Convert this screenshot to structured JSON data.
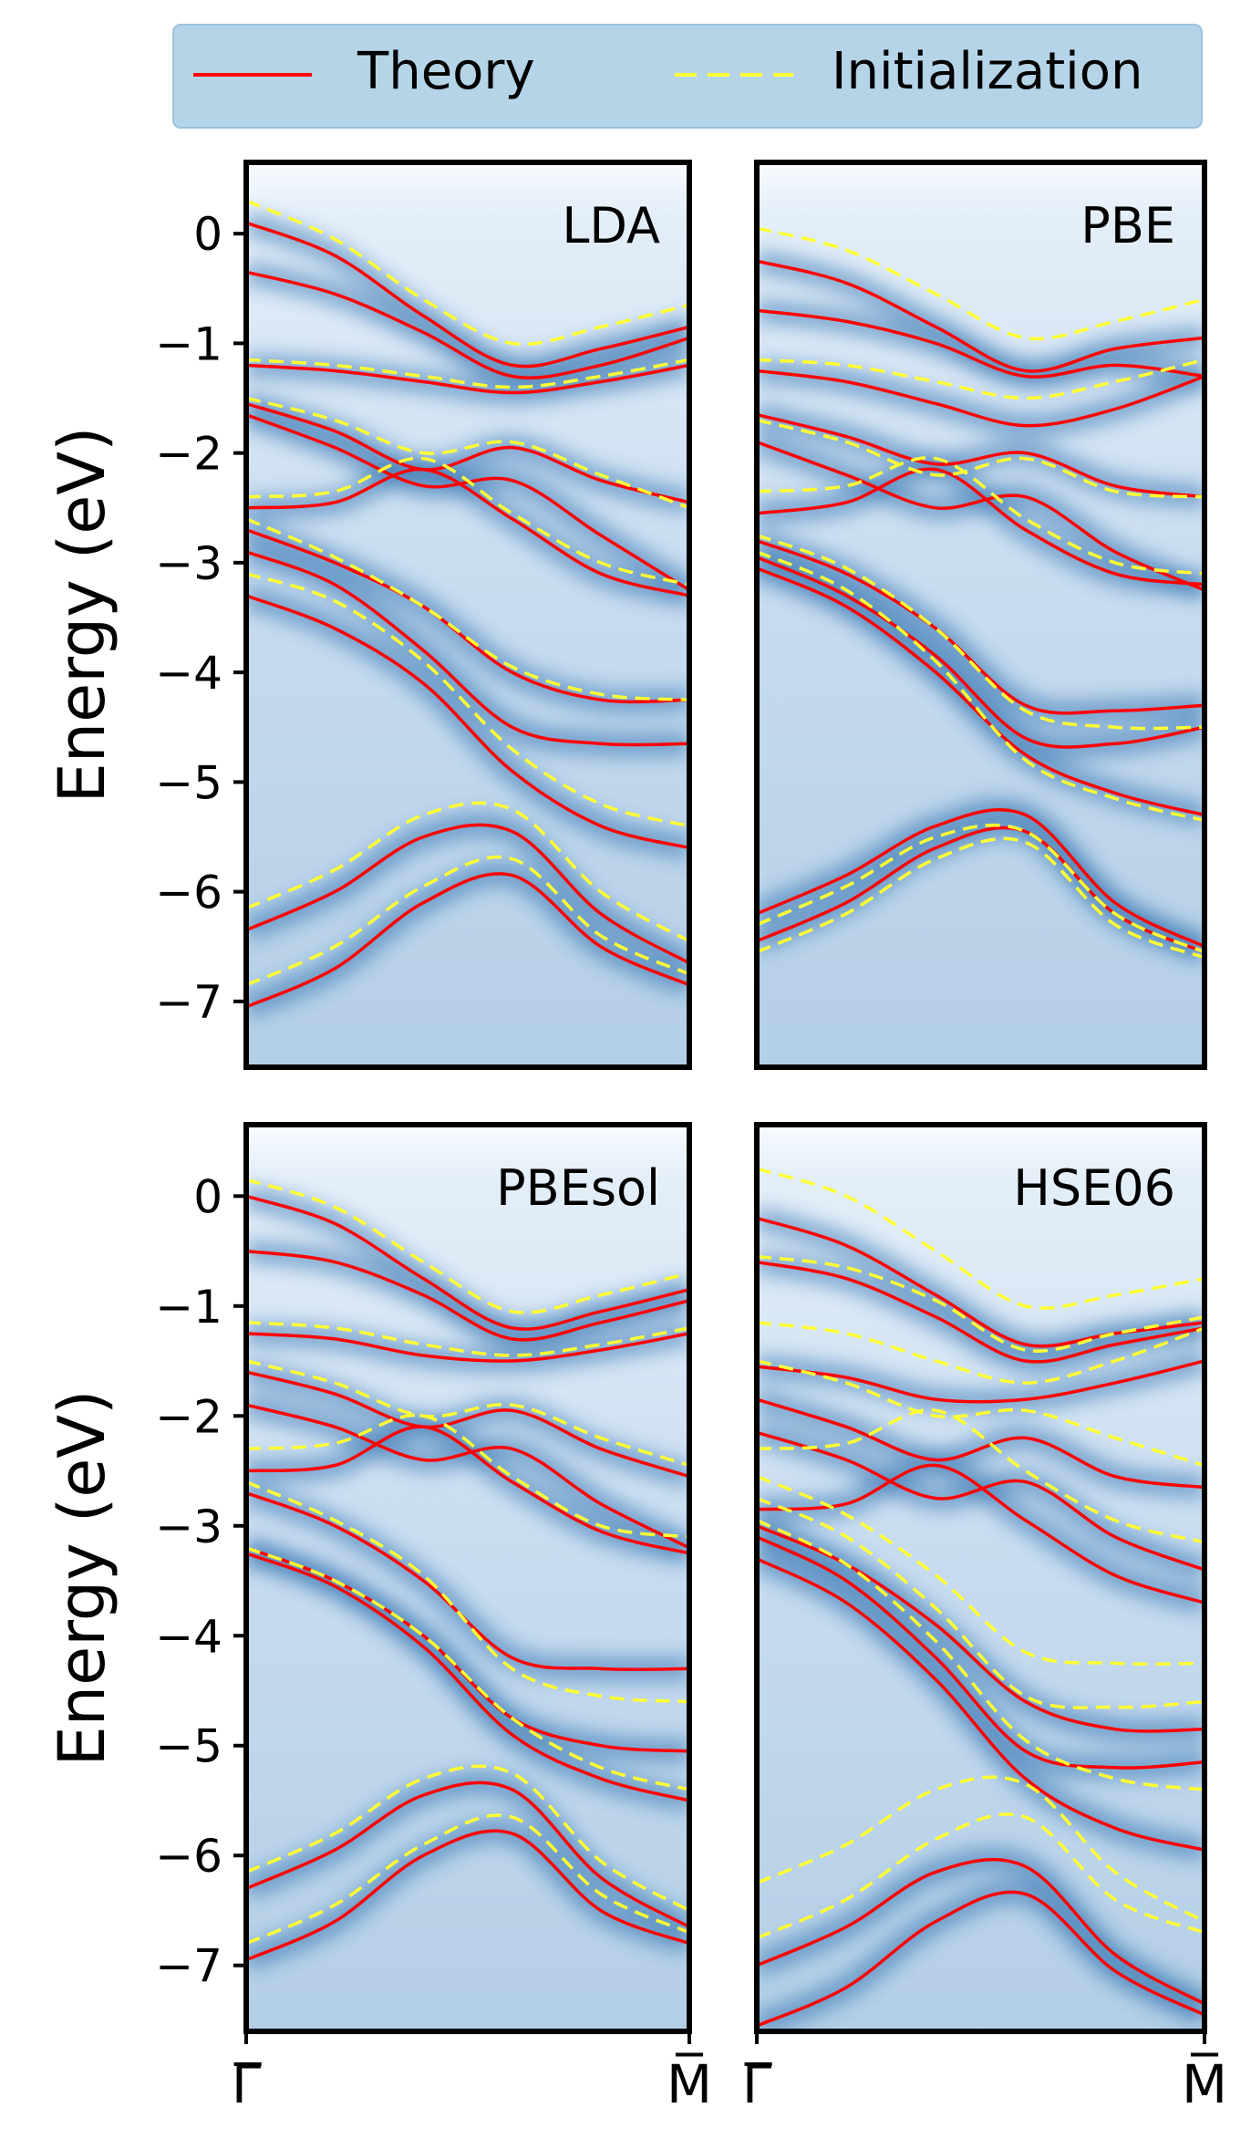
{
  "legend": {
    "position": "top",
    "entries": [
      {
        "label": "Theory",
        "color": "#ff0000",
        "style": "solid"
      },
      {
        "label": "Initialization",
        "color": "#ffff33",
        "style": "dashed"
      }
    ],
    "background": "#b6d4e8"
  },
  "colors": {
    "theory": "#ff0000",
    "init": "#ffff33",
    "intensity_low": "#f7fbff",
    "intensity_high": "#08306b"
  },
  "chart_data": [
    {
      "type": "line",
      "panel_label": "LDA",
      "ylabel": "Energy (eV)",
      "ylim": [
        -7.6,
        0.65
      ],
      "yticks": [
        0,
        -1,
        -2,
        -3,
        -4,
        -5,
        -6,
        -7
      ],
      "ytick_labels": [
        "0",
        "−1",
        "−2",
        "−3",
        "−4",
        "−5",
        "−6",
        "−7"
      ],
      "xlabels": [],
      "series": [
        {
          "kind": "theory",
          "y": [
            0.1,
            -0.2,
            -0.75,
            -1.2,
            -1.05,
            -0.85
          ]
        },
        {
          "kind": "theory",
          "y": [
            -0.35,
            -0.55,
            -0.9,
            -1.3,
            -1.2,
            -0.95
          ]
        },
        {
          "kind": "theory",
          "y": [
            -1.2,
            -1.25,
            -1.35,
            -1.45,
            -1.35,
            -1.2
          ]
        },
        {
          "kind": "theory",
          "y": [
            -1.55,
            -1.8,
            -2.15,
            -1.95,
            -2.25,
            -2.45
          ]
        },
        {
          "kind": "theory",
          "y": [
            -1.65,
            -1.95,
            -2.3,
            -2.25,
            -2.75,
            -3.25
          ]
        },
        {
          "kind": "theory",
          "y": [
            -2.5,
            -2.45,
            -2.15,
            -2.6,
            -3.1,
            -3.3
          ]
        },
        {
          "kind": "theory",
          "y": [
            -2.7,
            -3.0,
            -3.4,
            -4.0,
            -4.25,
            -4.25
          ]
        },
        {
          "kind": "theory",
          "y": [
            -2.9,
            -3.2,
            -3.8,
            -4.5,
            -4.65,
            -4.65
          ]
        },
        {
          "kind": "theory",
          "y": [
            -3.3,
            -3.6,
            -4.1,
            -4.9,
            -5.4,
            -5.6
          ]
        },
        {
          "kind": "theory",
          "y": [
            -6.35,
            -6.0,
            -5.5,
            -5.45,
            -6.2,
            -6.65
          ]
        },
        {
          "kind": "theory",
          "y": [
            -7.05,
            -6.7,
            -6.1,
            -5.85,
            -6.5,
            -6.85
          ]
        },
        {
          "kind": "init",
          "y": [
            0.3,
            -0.05,
            -0.6,
            -1.0,
            -0.85,
            -0.65
          ]
        },
        {
          "kind": "init",
          "y": [
            -1.15,
            -1.2,
            -1.3,
            -1.4,
            -1.3,
            -1.15
          ]
        },
        {
          "kind": "init",
          "y": [
            -1.5,
            -1.7,
            -2.0,
            -1.9,
            -2.2,
            -2.5
          ]
        },
        {
          "kind": "init",
          "y": [
            -2.4,
            -2.35,
            -2.05,
            -2.55,
            -3.0,
            -3.2
          ]
        },
        {
          "kind": "init",
          "y": [
            -2.6,
            -2.95,
            -3.4,
            -3.95,
            -4.2,
            -4.25
          ]
        },
        {
          "kind": "init",
          "y": [
            -3.1,
            -3.35,
            -3.9,
            -4.7,
            -5.2,
            -5.4
          ]
        },
        {
          "kind": "init",
          "y": [
            -6.15,
            -5.8,
            -5.3,
            -5.25,
            -6.0,
            -6.45
          ]
        },
        {
          "kind": "init",
          "y": [
            -6.85,
            -6.5,
            -5.95,
            -5.7,
            -6.4,
            -6.75
          ]
        }
      ]
    },
    {
      "type": "line",
      "panel_label": "PBE",
      "ylabel": "",
      "ylim": [
        -7.6,
        0.65
      ],
      "yticks": [],
      "ytick_labels": [],
      "xlabels": [],
      "series": [
        {
          "kind": "theory",
          "y": [
            -0.25,
            -0.45,
            -0.85,
            -1.25,
            -1.05,
            -0.95
          ]
        },
        {
          "kind": "theory",
          "y": [
            -0.7,
            -0.8,
            -1.0,
            -1.3,
            -1.2,
            -1.3
          ]
        },
        {
          "kind": "theory",
          "y": [
            -1.25,
            -1.35,
            -1.55,
            -1.75,
            -1.6,
            -1.3
          ]
        },
        {
          "kind": "theory",
          "y": [
            -1.65,
            -1.85,
            -2.1,
            -2.0,
            -2.3,
            -2.4
          ]
        },
        {
          "kind": "theory",
          "y": [
            -1.9,
            -2.2,
            -2.5,
            -2.4,
            -2.9,
            -3.25
          ]
        },
        {
          "kind": "theory",
          "y": [
            -2.55,
            -2.45,
            -2.15,
            -2.7,
            -3.1,
            -3.2
          ]
        },
        {
          "kind": "theory",
          "y": [
            -2.8,
            -3.1,
            -3.6,
            -4.3,
            -4.35,
            -4.3
          ]
        },
        {
          "kind": "theory",
          "y": [
            -2.95,
            -3.3,
            -3.85,
            -4.6,
            -4.65,
            -4.5
          ]
        },
        {
          "kind": "theory",
          "y": [
            -3.05,
            -3.4,
            -4.0,
            -4.75,
            -5.1,
            -5.3
          ]
        },
        {
          "kind": "theory",
          "y": [
            -6.2,
            -5.85,
            -5.4,
            -5.3,
            -6.1,
            -6.5
          ]
        },
        {
          "kind": "theory",
          "y": [
            -6.45,
            -6.1,
            -5.6,
            -5.45,
            -6.2,
            -6.55
          ]
        },
        {
          "kind": "init",
          "y": [
            0.05,
            -0.15,
            -0.55,
            -0.95,
            -0.8,
            -0.6
          ]
        },
        {
          "kind": "init",
          "y": [
            -1.15,
            -1.2,
            -1.35,
            -1.5,
            -1.35,
            -1.15
          ]
        },
        {
          "kind": "init",
          "y": [
            -1.7,
            -1.9,
            -2.2,
            -2.05,
            -2.35,
            -2.4
          ]
        },
        {
          "kind": "init",
          "y": [
            -2.35,
            -2.3,
            -2.05,
            -2.6,
            -3.0,
            -3.1
          ]
        },
        {
          "kind": "init",
          "y": [
            -2.75,
            -3.05,
            -3.6,
            -4.35,
            -4.5,
            -4.5
          ]
        },
        {
          "kind": "init",
          "y": [
            -2.9,
            -3.25,
            -3.9,
            -4.8,
            -5.15,
            -5.35
          ]
        },
        {
          "kind": "init",
          "y": [
            -6.3,
            -5.95,
            -5.5,
            -5.45,
            -6.2,
            -6.55
          ]
        },
        {
          "kind": "init",
          "y": [
            -6.55,
            -6.2,
            -5.7,
            -5.55,
            -6.3,
            -6.6
          ]
        }
      ]
    },
    {
      "type": "line",
      "panel_label": "PBEsol",
      "ylabel": "Energy (eV)",
      "ylim": [
        -7.6,
        0.65
      ],
      "yticks": [
        0,
        -1,
        -2,
        -3,
        -4,
        -5,
        -6,
        -7
      ],
      "ytick_labels": [
        "0",
        "−1",
        "−2",
        "−3",
        "−4",
        "−5",
        "−6",
        "−7"
      ],
      "xlabels": [
        "Γ̅",
        "M̅"
      ],
      "series": [
        {
          "kind": "theory",
          "y": [
            0.0,
            -0.25,
            -0.75,
            -1.2,
            -1.05,
            -0.85
          ]
        },
        {
          "kind": "theory",
          "y": [
            -0.5,
            -0.6,
            -0.9,
            -1.3,
            -1.15,
            -0.95
          ]
        },
        {
          "kind": "theory",
          "y": [
            -1.25,
            -1.3,
            -1.45,
            -1.5,
            -1.4,
            -1.25
          ]
        },
        {
          "kind": "theory",
          "y": [
            -1.6,
            -1.8,
            -2.1,
            -1.95,
            -2.3,
            -2.55
          ]
        },
        {
          "kind": "theory",
          "y": [
            -1.9,
            -2.1,
            -2.4,
            -2.3,
            -2.8,
            -3.2
          ]
        },
        {
          "kind": "theory",
          "y": [
            -2.5,
            -2.45,
            -2.1,
            -2.6,
            -3.05,
            -3.25
          ]
        },
        {
          "kind": "theory",
          "y": [
            -2.7,
            -3.0,
            -3.5,
            -4.2,
            -4.3,
            -4.3
          ]
        },
        {
          "kind": "theory",
          "y": [
            -3.2,
            -3.5,
            -4.0,
            -4.75,
            -5.0,
            -5.05
          ]
        },
        {
          "kind": "theory",
          "y": [
            -3.25,
            -3.55,
            -4.1,
            -4.9,
            -5.3,
            -5.5
          ]
        },
        {
          "kind": "theory",
          "y": [
            -6.3,
            -5.95,
            -5.45,
            -5.4,
            -6.2,
            -6.65
          ]
        },
        {
          "kind": "theory",
          "y": [
            -6.95,
            -6.6,
            -6.0,
            -5.8,
            -6.5,
            -6.8
          ]
        },
        {
          "kind": "init",
          "y": [
            0.15,
            -0.1,
            -0.6,
            -1.05,
            -0.9,
            -0.7
          ]
        },
        {
          "kind": "init",
          "y": [
            -1.15,
            -1.2,
            -1.35,
            -1.45,
            -1.35,
            -1.2
          ]
        },
        {
          "kind": "init",
          "y": [
            -1.5,
            -1.7,
            -2.0,
            -1.9,
            -2.2,
            -2.45
          ]
        },
        {
          "kind": "init",
          "y": [
            -2.3,
            -2.25,
            -2.0,
            -2.55,
            -3.0,
            -3.1
          ]
        },
        {
          "kind": "init",
          "y": [
            -2.6,
            -2.95,
            -3.45,
            -4.3,
            -4.55,
            -4.6
          ]
        },
        {
          "kind": "init",
          "y": [
            -3.2,
            -3.5,
            -4.0,
            -4.75,
            -5.2,
            -5.4
          ]
        },
        {
          "kind": "init",
          "y": [
            -6.15,
            -5.8,
            -5.3,
            -5.25,
            -6.05,
            -6.5
          ]
        },
        {
          "kind": "init",
          "y": [
            -6.8,
            -6.45,
            -5.9,
            -5.65,
            -6.35,
            -6.7
          ]
        }
      ]
    },
    {
      "type": "line",
      "panel_label": "HSE06",
      "ylabel": "",
      "ylim": [
        -7.6,
        0.65
      ],
      "yticks": [],
      "ytick_labels": [],
      "xlabels": [
        "Γ̅",
        "M̅"
      ],
      "series": [
        {
          "kind": "theory",
          "y": [
            -0.2,
            -0.45,
            -0.9,
            -1.35,
            -1.25,
            -1.15
          ]
        },
        {
          "kind": "theory",
          "y": [
            -0.6,
            -0.75,
            -1.1,
            -1.5,
            -1.35,
            -1.2
          ]
        },
        {
          "kind": "theory",
          "y": [
            -1.55,
            -1.65,
            -1.85,
            -1.85,
            -1.7,
            -1.5
          ]
        },
        {
          "kind": "theory",
          "y": [
            -1.85,
            -2.1,
            -2.4,
            -2.2,
            -2.55,
            -2.65
          ]
        },
        {
          "kind": "theory",
          "y": [
            -2.15,
            -2.4,
            -2.75,
            -2.6,
            -3.1,
            -3.4
          ]
        },
        {
          "kind": "theory",
          "y": [
            -2.85,
            -2.8,
            -2.45,
            -2.95,
            -3.45,
            -3.7
          ]
        },
        {
          "kind": "theory",
          "y": [
            -3.0,
            -3.35,
            -3.9,
            -4.6,
            -4.85,
            -4.85
          ]
        },
        {
          "kind": "theory",
          "y": [
            -3.1,
            -3.5,
            -4.2,
            -5.05,
            -5.2,
            -5.15
          ]
        },
        {
          "kind": "theory",
          "y": [
            -3.3,
            -3.7,
            -4.4,
            -5.3,
            -5.75,
            -5.95
          ]
        },
        {
          "kind": "theory",
          "y": [
            -7.0,
            -6.65,
            -6.15,
            -6.1,
            -6.9,
            -7.35
          ]
        },
        {
          "kind": "theory",
          "y": [
            -7.55,
            -7.2,
            -6.6,
            -6.35,
            -7.05,
            -7.45
          ]
        },
        {
          "kind": "init",
          "y": [
            0.25,
            0.0,
            -0.5,
            -1.0,
            -0.9,
            -0.75
          ]
        },
        {
          "kind": "init",
          "y": [
            -0.55,
            -0.65,
            -0.95,
            -1.4,
            -1.25,
            -1.1
          ]
        },
        {
          "kind": "init",
          "y": [
            -1.15,
            -1.25,
            -1.5,
            -1.7,
            -1.5,
            -1.2
          ]
        },
        {
          "kind": "init",
          "y": [
            -1.5,
            -1.7,
            -2.0,
            -1.95,
            -2.2,
            -2.45
          ]
        },
        {
          "kind": "init",
          "y": [
            -2.3,
            -2.25,
            -1.95,
            -2.5,
            -2.95,
            -3.15
          ]
        },
        {
          "kind": "init",
          "y": [
            -2.55,
            -2.9,
            -3.45,
            -4.15,
            -4.25,
            -4.25
          ]
        },
        {
          "kind": "init",
          "y": [
            -2.75,
            -3.1,
            -3.75,
            -4.55,
            -4.65,
            -4.6
          ]
        },
        {
          "kind": "init",
          "y": [
            -2.95,
            -3.35,
            -4.05,
            -4.95,
            -5.3,
            -5.4
          ]
        },
        {
          "kind": "init",
          "y": [
            -6.25,
            -5.9,
            -5.4,
            -5.35,
            -6.15,
            -6.6
          ]
        },
        {
          "kind": "init",
          "y": [
            -6.75,
            -6.4,
            -5.85,
            -5.65,
            -6.4,
            -6.7
          ]
        }
      ]
    }
  ]
}
